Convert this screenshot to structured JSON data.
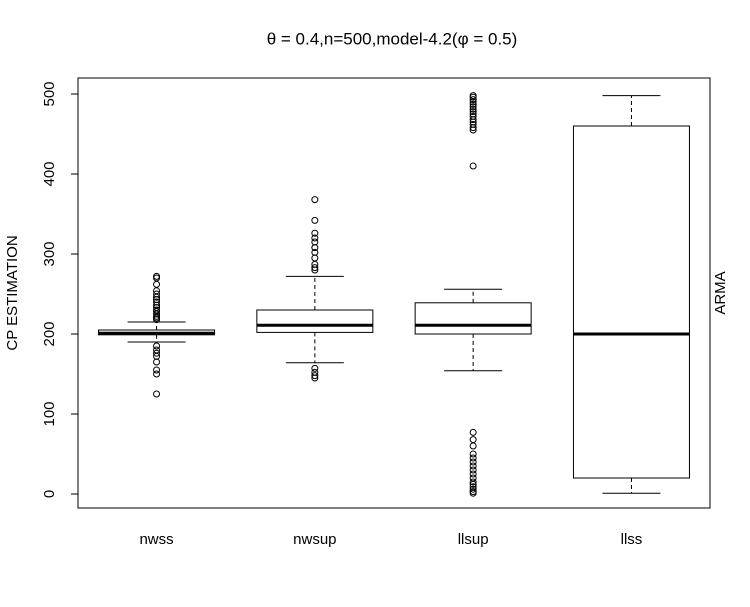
{
  "chart_data": {
    "type": "box",
    "title": "θ = 0.4,n=500,model-4.2(φ = 0.5)",
    "y_label": "CP ESTIMATION",
    "right_label": "ARMA",
    "categories": [
      "nwss",
      "nwsup",
      "llsup",
      "llss"
    ],
    "boxes": [
      {
        "whislo": 190,
        "q1": 199,
        "med": 201,
        "q3": 205,
        "whishi": 215,
        "fliers": [
          218,
          220,
          222,
          225,
          228,
          230,
          233,
          236,
          240,
          243,
          246,
          250,
          254,
          262,
          270,
          272,
          185,
          180,
          176,
          172,
          165,
          155,
          150,
          125
        ]
      },
      {
        "whislo": 164,
        "q1": 202,
        "med": 211,
        "q3": 230,
        "whishi": 272,
        "fliers": [
          280,
          283,
          287,
          295,
          302,
          308,
          315,
          320,
          326,
          342,
          368,
          157,
          152,
          148,
          145
        ]
      },
      {
        "whislo": 154,
        "q1": 200,
        "med": 211,
        "q3": 239,
        "whishi": 256,
        "fliers": [
          410,
          455,
          458,
          462,
          465,
          468,
          472,
          475,
          478,
          481,
          484,
          487,
          490,
          493,
          496,
          498,
          77,
          68,
          60,
          50,
          45,
          40,
          35,
          30,
          25,
          20,
          15,
          12,
          9,
          6,
          3,
          1
        ]
      },
      {
        "whislo": 1,
        "q1": 20,
        "med": 200,
        "q3": 460,
        "whishi": 498,
        "fliers": []
      }
    ],
    "ylim": [
      -17.5,
      520
    ],
    "yticks": [
      0,
      100,
      200,
      300,
      400,
      500
    ]
  }
}
